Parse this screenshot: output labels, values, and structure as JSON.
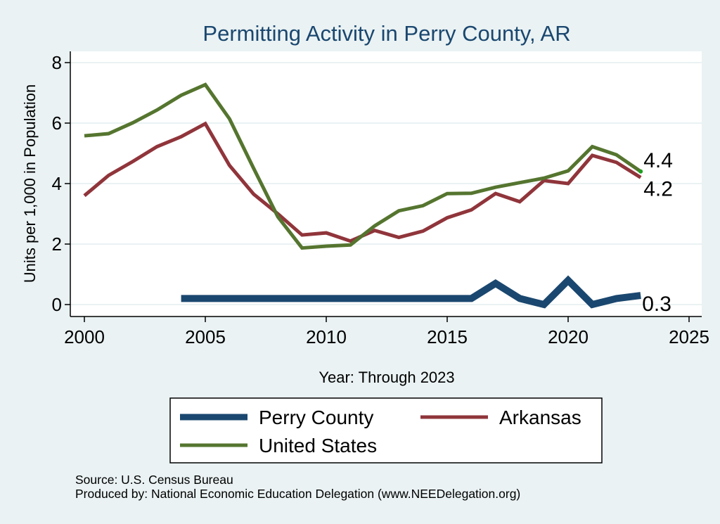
{
  "chart_data": {
    "type": "line",
    "title": "Permitting Activity in Perry County, AR",
    "xlabel": "Year: Through 2023",
    "ylabel": "Units per 1,000 in Population",
    "xlim": [
      2000,
      2025
    ],
    "ylim": [
      0,
      8
    ],
    "x_ticks": [
      2000,
      2005,
      2010,
      2015,
      2020,
      2025
    ],
    "y_ticks": [
      0,
      2,
      4,
      6,
      8
    ],
    "grid": true,
    "legend_position": "bottom",
    "series": [
      {
        "name": "Perry County",
        "color": "#1a476f",
        "x": [
          2004,
          2005,
          2006,
          2007,
          2008,
          2009,
          2010,
          2011,
          2012,
          2013,
          2014,
          2015,
          2016,
          2017,
          2018,
          2019,
          2020,
          2021,
          2022,
          2023
        ],
        "values": [
          0.2,
          0.2,
          0.2,
          0.2,
          0.2,
          0.2,
          0.2,
          0.2,
          0.2,
          0.2,
          0.2,
          0.2,
          0.2,
          0.7,
          0.2,
          0.0,
          0.8,
          0.0,
          0.2,
          0.3
        ],
        "end_label": "0.3"
      },
      {
        "name": "Arkansas",
        "color": "#90353b",
        "x": [
          2000,
          2001,
          2002,
          2003,
          2004,
          2005,
          2006,
          2007,
          2008,
          2009,
          2010,
          2011,
          2012,
          2013,
          2014,
          2015,
          2016,
          2017,
          2018,
          2019,
          2020,
          2021,
          2022,
          2023
        ],
        "values": [
          3.6,
          4.27,
          4.73,
          5.22,
          5.55,
          5.98,
          4.6,
          3.65,
          3.0,
          2.3,
          2.37,
          2.1,
          2.45,
          2.22,
          2.43,
          2.87,
          3.13,
          3.67,
          3.4,
          4.1,
          4.0,
          4.93,
          4.7,
          4.2
        ],
        "end_label": "4.2"
      },
      {
        "name": "United States",
        "color": "#55752f",
        "x": [
          2000,
          2001,
          2002,
          2003,
          2004,
          2005,
          2006,
          2007,
          2008,
          2009,
          2010,
          2011,
          2012,
          2013,
          2014,
          2015,
          2016,
          2017,
          2018,
          2019,
          2020,
          2021,
          2022,
          2023
        ],
        "values": [
          5.58,
          5.65,
          6.01,
          6.43,
          6.92,
          7.27,
          6.14,
          4.5,
          2.9,
          1.87,
          1.93,
          1.97,
          2.6,
          3.1,
          3.27,
          3.67,
          3.68,
          3.88,
          4.03,
          4.18,
          4.42,
          5.22,
          4.95,
          4.4
        ],
        "end_label": "4.4"
      }
    ]
  },
  "notes": {
    "source": "Source: U.S. Census Bureau",
    "produced_by": "Produced by: National Economic Education Delegation (www.NEEDelegation.org)"
  }
}
